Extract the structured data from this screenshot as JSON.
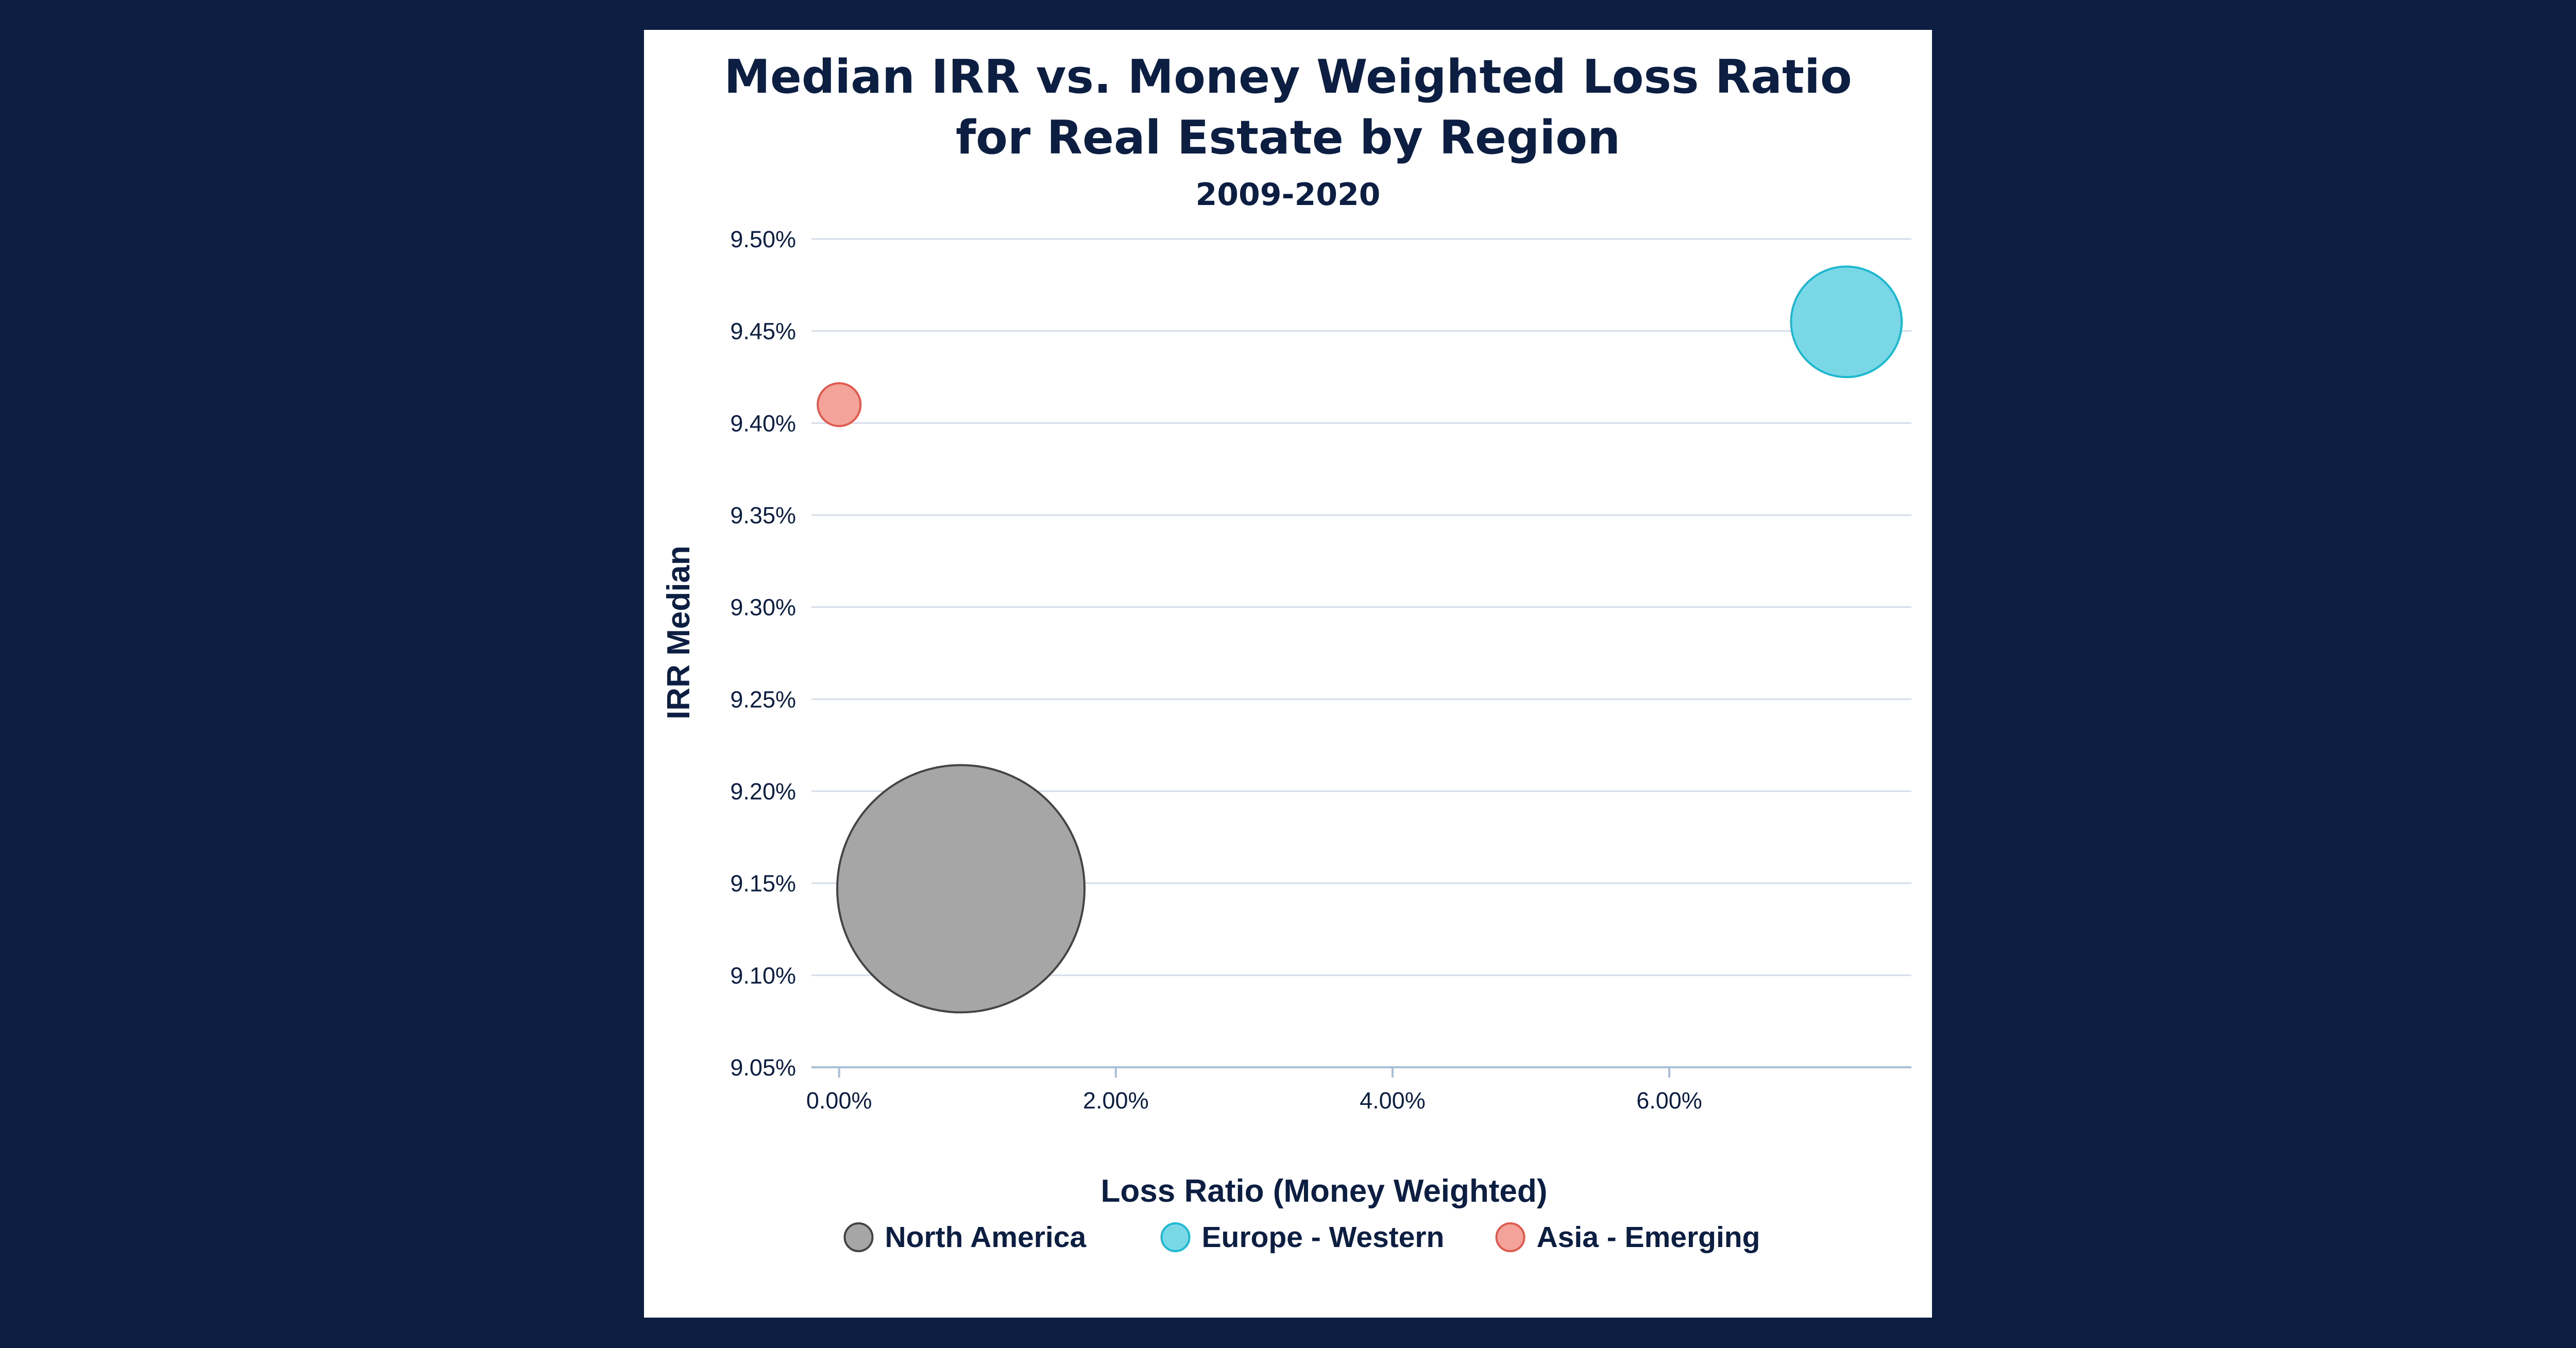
{
  "chart_data": {
    "type": "bubble",
    "title_lines": [
      "Median IRR vs. Money Weighted Loss Ratio",
      "for Real Estate by Region"
    ],
    "subtitle": "2009-2020",
    "xlabel": "Loss Ratio (Money Weighted)",
    "ylabel": "IRR Median",
    "xlim": [
      -0.2,
      7.75
    ],
    "ylim": [
      9.05,
      9.5
    ],
    "x_ticks": [
      0,
      2,
      4,
      6
    ],
    "x_tick_labels": [
      "0.00%",
      "2.00%",
      "4.00%",
      "6.00%"
    ],
    "y_ticks": [
      9.05,
      9.1,
      9.15,
      9.2,
      9.25,
      9.3,
      9.35,
      9.4,
      9.45,
      9.5
    ],
    "y_tick_labels": [
      "9.05%",
      "9.10%",
      "9.15%",
      "9.20%",
      "9.25%",
      "9.30%",
      "9.35%",
      "9.40%",
      "9.45%",
      "9.50%"
    ],
    "grid": true,
    "legend_position": "bottom",
    "series": [
      {
        "name": "North America",
        "x": 0.88,
        "y": 9.147,
        "size": 100,
        "fill": "#a6a6a6",
        "stroke": "#444444"
      },
      {
        "name": "Europe - Western",
        "x": 7.28,
        "y": 9.455,
        "size": 20,
        "fill": "#7ad8e6",
        "stroke": "#1bb8d0"
      },
      {
        "name": "Asia - Emerging",
        "x": 0.0,
        "y": 9.41,
        "size": 3,
        "fill": "#f4a39b",
        "stroke": "#e05a4f"
      }
    ]
  }
}
